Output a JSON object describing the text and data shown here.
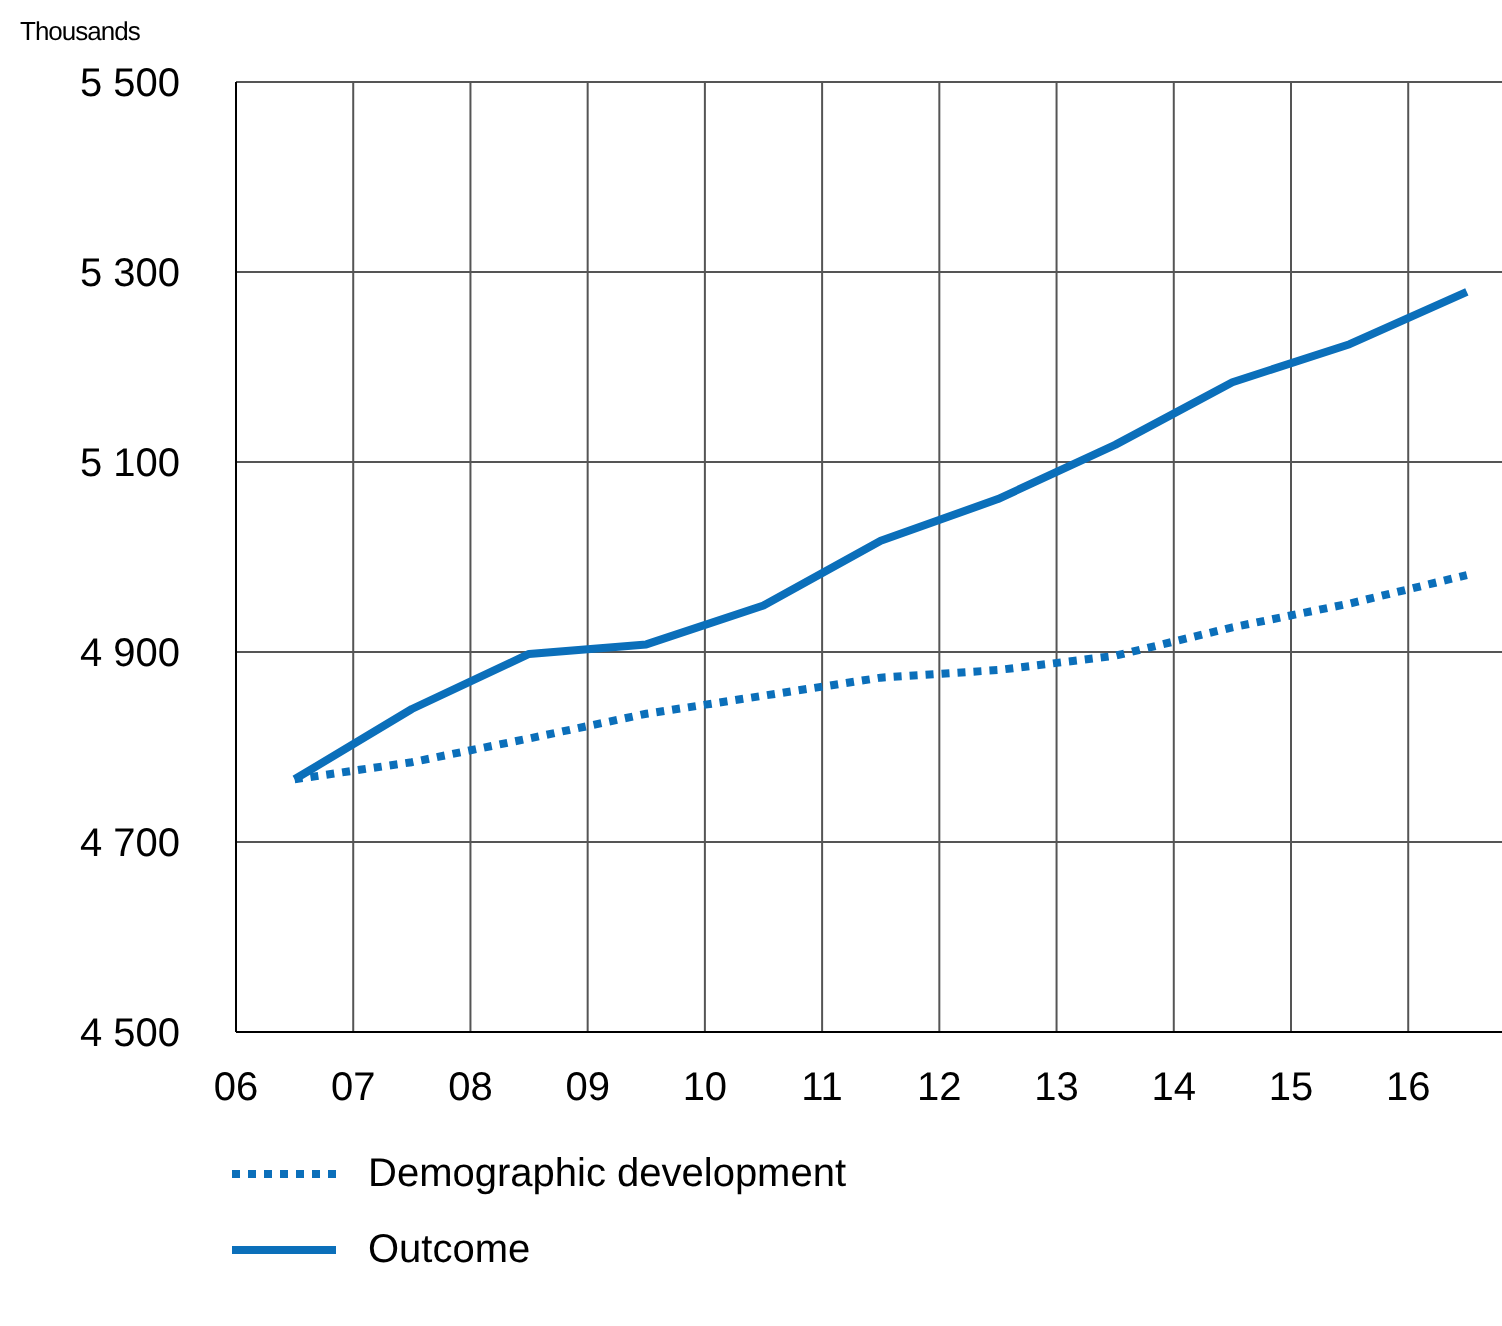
{
  "chart_data": {
    "type": "line",
    "ylabel": "Thousands",
    "x": [
      6.5,
      7.5,
      8.5,
      9.5,
      10.5,
      11.5,
      12.5,
      13.5,
      14.5,
      15.5,
      16.5
    ],
    "xlim": [
      6,
      16.8
    ],
    "xticks": [
      {
        "value": 6,
        "label": "06"
      },
      {
        "value": 7,
        "label": "07"
      },
      {
        "value": 8,
        "label": "08"
      },
      {
        "value": 9,
        "label": "09"
      },
      {
        "value": 10,
        "label": "10"
      },
      {
        "value": 11,
        "label": "11"
      },
      {
        "value": 12,
        "label": "12"
      },
      {
        "value": 13,
        "label": "13"
      },
      {
        "value": 14,
        "label": "14"
      },
      {
        "value": 15,
        "label": "15"
      },
      {
        "value": 16,
        "label": "16"
      }
    ],
    "ylim": [
      4500,
      5500
    ],
    "yticks": [
      {
        "value": 4500,
        "label": "4 500"
      },
      {
        "value": 4700,
        "label": "4 700"
      },
      {
        "value": 4900,
        "label": "4 900"
      },
      {
        "value": 5100,
        "label": "5 100"
      },
      {
        "value": 5300,
        "label": "5 300"
      },
      {
        "value": 5500,
        "label": "5 500"
      }
    ],
    "series": [
      {
        "name": "Demographic development",
        "color": "#0b6fba",
        "line_style": "dotted",
        "values": [
          4766,
          4784,
          4809,
          4835,
          4854,
          4873,
          4881,
          4896,
          4926,
          4951,
          4981
        ]
      },
      {
        "name": "Outcome",
        "color": "#0b6fba",
        "line_style": "solid",
        "values": [
          4766,
          4840,
          4898,
          4908,
          4949,
          5017,
          5061,
          5118,
          5184,
          5224,
          5279
        ]
      }
    ],
    "grid": true,
    "legend": "bottom left",
    "marker": "none"
  }
}
